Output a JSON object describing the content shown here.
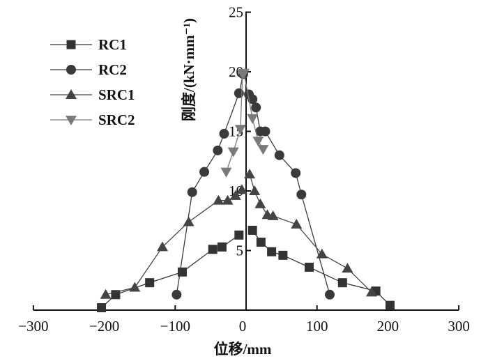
{
  "chart_data": {
    "type": "line",
    "xlabel": "位移/mm",
    "ylabel": "刚度/(kN·mm⁻¹)",
    "xlim": [
      -300,
      300
    ],
    "ylim": [
      0,
      25
    ],
    "xticks": [
      -300,
      -200,
      -100,
      0,
      100,
      200,
      300
    ],
    "xtick_labels": [
      "−300",
      "−200",
      "−100",
      "0",
      "100",
      "200",
      "300"
    ],
    "yticks": [
      5,
      10,
      15,
      20,
      25
    ],
    "ytick_labels": [
      "5",
      "10",
      "15",
      "20",
      "25"
    ],
    "grid": false,
    "legend_position": "top-left",
    "series": [
      {
        "name": "RC1",
        "marker": "square",
        "color": "#333333",
        "left": [
          [
            -204,
            0.2
          ],
          [
            -184,
            1.3
          ],
          [
            -136,
            2.3
          ],
          [
            -90,
            3.2
          ],
          [
            -47,
            5.1
          ],
          [
            -34,
            5.3
          ],
          [
            -10,
            6.3
          ]
        ],
        "right": [
          [
            9,
            6.7
          ],
          [
            21,
            5.7
          ],
          [
            36,
            4.9
          ],
          [
            52,
            4.6
          ],
          [
            89,
            3.6
          ],
          [
            136,
            2.3
          ],
          [
            183,
            1.6
          ],
          [
            203,
            0.4
          ]
        ]
      },
      {
        "name": "RC2",
        "marker": "circle",
        "color": "#3a3a3a",
        "left": [
          [
            -98,
            1.3
          ],
          [
            -76,
            9.9
          ],
          [
            -59,
            11.6
          ],
          [
            -40,
            13.4
          ],
          [
            -31,
            14.8
          ],
          [
            -10,
            18.2
          ],
          [
            -4,
            19.8
          ]
        ],
        "right": [
          [
            4,
            18.1
          ],
          [
            9,
            17.7
          ],
          [
            14,
            17.0
          ],
          [
            20,
            15.0
          ],
          [
            27,
            15.0
          ],
          [
            47,
            13.0
          ],
          [
            70,
            11.5
          ],
          [
            78,
            9.7
          ],
          [
            118,
            1.3
          ]
        ]
      },
      {
        "name": "SRC1",
        "marker": "triangle-up",
        "color": "#444444",
        "left": [
          [
            -198,
            1.3
          ],
          [
            -157,
            1.9
          ],
          [
            -118,
            5.3
          ],
          [
            -81,
            7.4
          ],
          [
            -39,
            9.2
          ],
          [
            -26,
            9.2
          ],
          [
            -15,
            9.6
          ],
          [
            -6,
            10.1
          ]
        ],
        "right": [
          [
            5,
            11.4
          ],
          [
            12,
            10.0
          ],
          [
            20,
            8.9
          ],
          [
            30,
            8.0
          ],
          [
            38,
            7.9
          ],
          [
            71,
            7.2
          ],
          [
            107,
            4.7
          ],
          [
            143,
            3.5
          ],
          [
            177,
            1.5
          ]
        ]
      },
      {
        "name": "SRC2",
        "marker": "triangle-down",
        "color": "#7a7a7a",
        "left": [
          [
            -28,
            11.6
          ],
          [
            -18,
            13.3
          ],
          [
            -8,
            15.2
          ],
          [
            -5,
            19.8
          ]
        ],
        "right": [
          [
            -3,
            19.9
          ],
          [
            9,
            16.1
          ],
          [
            17,
            14.2
          ],
          [
            24,
            13.5
          ]
        ]
      }
    ]
  }
}
